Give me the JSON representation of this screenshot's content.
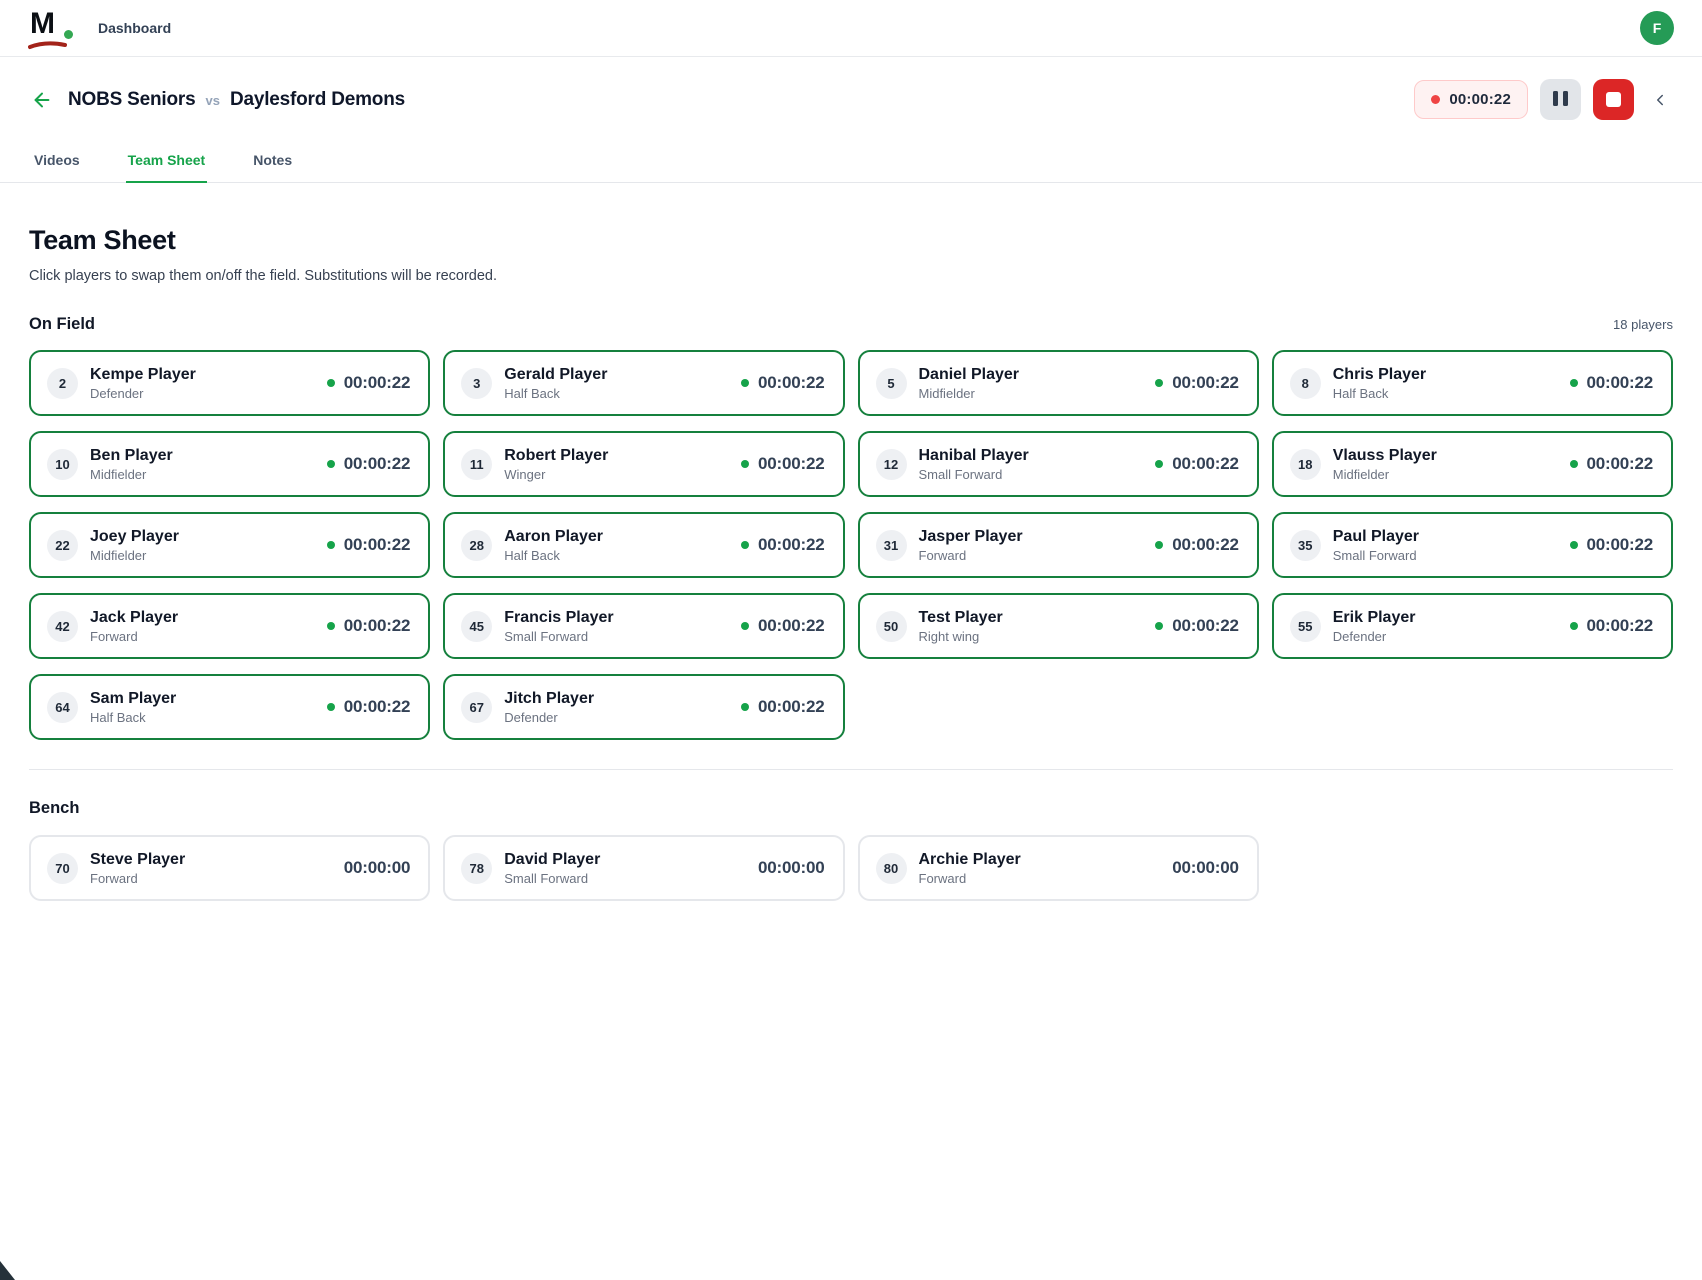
{
  "header": {
    "logo_letter": "M",
    "nav_label": "Dashboard",
    "avatar_initial": "F"
  },
  "match": {
    "home_team": "NOBS Seniors",
    "vs_label": "vs",
    "away_team": "Daylesford Demons",
    "timer": "00:00:22"
  },
  "tabs": [
    {
      "label": "Videos",
      "active": false
    },
    {
      "label": "Team Sheet",
      "active": true
    },
    {
      "label": "Notes",
      "active": false
    }
  ],
  "main": {
    "title": "Team Sheet",
    "subtitle": "Click players to swap them on/off the field. Substitutions will be recorded.",
    "on_field": {
      "label": "On Field",
      "count_label": "18 players",
      "players": [
        {
          "number": "2",
          "name": "Kempe Player",
          "position": "Defender",
          "time": "00:00:22"
        },
        {
          "number": "3",
          "name": "Gerald Player",
          "position": "Half Back",
          "time": "00:00:22"
        },
        {
          "number": "5",
          "name": "Daniel Player",
          "position": "Midfielder",
          "time": "00:00:22"
        },
        {
          "number": "8",
          "name": "Chris Player",
          "position": "Half Back",
          "time": "00:00:22"
        },
        {
          "number": "10",
          "name": "Ben Player",
          "position": "Midfielder",
          "time": "00:00:22"
        },
        {
          "number": "11",
          "name": "Robert Player",
          "position": "Winger",
          "time": "00:00:22"
        },
        {
          "number": "12",
          "name": "Hanibal Player",
          "position": "Small Forward",
          "time": "00:00:22"
        },
        {
          "number": "18",
          "name": "Vlauss Player",
          "position": "Midfielder",
          "time": "00:00:22"
        },
        {
          "number": "22",
          "name": "Joey Player",
          "position": "Midfielder",
          "time": "00:00:22"
        },
        {
          "number": "28",
          "name": "Aaron Player",
          "position": "Half Back",
          "time": "00:00:22"
        },
        {
          "number": "31",
          "name": "Jasper Player",
          "position": "Forward",
          "time": "00:00:22"
        },
        {
          "number": "35",
          "name": "Paul Player",
          "position": "Small Forward",
          "time": "00:00:22"
        },
        {
          "number": "42",
          "name": "Jack Player",
          "position": "Forward",
          "time": "00:00:22"
        },
        {
          "number": "45",
          "name": "Francis Player",
          "position": "Small Forward",
          "time": "00:00:22"
        },
        {
          "number": "50",
          "name": "Test Player",
          "position": "Right wing",
          "time": "00:00:22"
        },
        {
          "number": "55",
          "name": "Erik Player",
          "position": "Defender",
          "time": "00:00:22"
        },
        {
          "number": "64",
          "name": "Sam Player",
          "position": "Half Back",
          "time": "00:00:22"
        },
        {
          "number": "67",
          "name": "Jitch Player",
          "position": "Defender",
          "time": "00:00:22"
        }
      ]
    },
    "bench": {
      "label": "Bench",
      "players": [
        {
          "number": "70",
          "name": "Steve Player",
          "position": "Forward",
          "time": "00:00:00"
        },
        {
          "number": "78",
          "name": "David Player",
          "position": "Small Forward",
          "time": "00:00:00"
        },
        {
          "number": "80",
          "name": "Archie Player",
          "position": "Forward",
          "time": "00:00:00"
        }
      ]
    }
  },
  "colors": {
    "accent_green": "#16a34a",
    "card_border_green": "#15803d",
    "stop_red": "#dc2626",
    "timer_pill_bg": "#fef2f2",
    "timer_pill_border": "#fecaca",
    "logo_swoosh_red": "#a3231a",
    "avatar_green": "#259b56"
  }
}
